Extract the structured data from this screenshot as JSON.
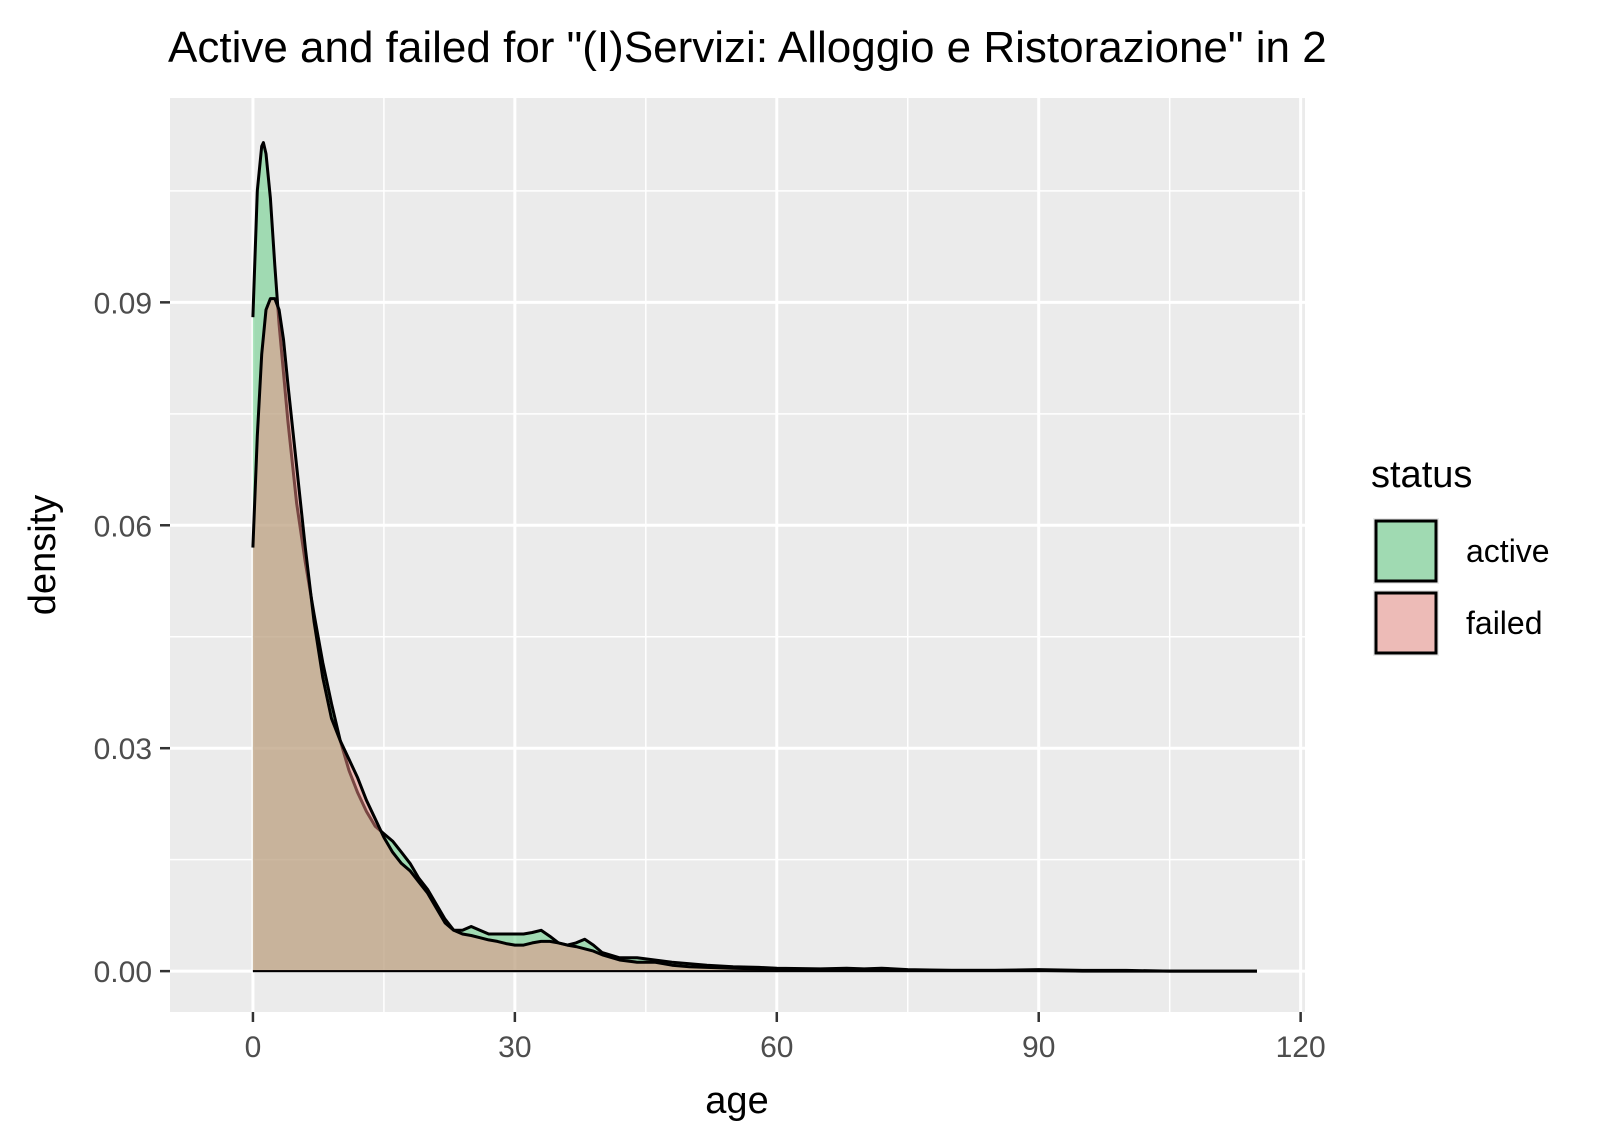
{
  "chart_data": {
    "type": "area",
    "title": "Active and failed for \"(I)Servizi: Alloggio e Ristorazione\" in 2",
    "xlabel": "age",
    "ylabel": "density",
    "xlim": [
      -9.5,
      120.5
    ],
    "ylim": [
      -0.0055,
      0.1175
    ],
    "x_ticks": [
      0,
      30,
      60,
      90,
      120
    ],
    "x_tick_labels": [
      "0",
      "30",
      "60",
      "90",
      "120"
    ],
    "y_ticks": [
      0.0,
      0.03,
      0.06,
      0.09
    ],
    "y_tick_labels": [
      "0.00",
      "0.03",
      "0.06",
      "0.09"
    ],
    "grid": true,
    "legend": {
      "title": "status",
      "placement": "right",
      "entries": [
        "active",
        "failed"
      ]
    },
    "colors": {
      "active": "#56c97a",
      "failed": "#ef8b83",
      "panel": "#ebebeb",
      "grid": "#ffffff",
      "outline": "#000000"
    },
    "series": [
      {
        "name": "active",
        "x": [
          0,
          0.5,
          1,
          1.2,
          1.5,
          2,
          2.5,
          3,
          4,
          5,
          6,
          7,
          8,
          9,
          10,
          11,
          12,
          13,
          14,
          15,
          16,
          17,
          18,
          19,
          20,
          21,
          22,
          23,
          24,
          25,
          26,
          27,
          28,
          29,
          30,
          31,
          32,
          33,
          34,
          35,
          36,
          37,
          38,
          39,
          40,
          42,
          44,
          46,
          48,
          50,
          52,
          55,
          58,
          60,
          65,
          68,
          70,
          72,
          75,
          80,
          85,
          90,
          95,
          100,
          105,
          110,
          115
        ],
        "y": [
          0.088,
          0.105,
          0.111,
          0.1115,
          0.11,
          0.104,
          0.095,
          0.087,
          0.074,
          0.063,
          0.055,
          0.048,
          0.0415,
          0.036,
          0.031,
          0.027,
          0.024,
          0.0215,
          0.0195,
          0.0185,
          0.0175,
          0.016,
          0.0145,
          0.0125,
          0.011,
          0.009,
          0.007,
          0.0055,
          0.0055,
          0.006,
          0.0055,
          0.005,
          0.005,
          0.005,
          0.005,
          0.005,
          0.0052,
          0.0055,
          0.0047,
          0.0038,
          0.0035,
          0.0038,
          0.0043,
          0.0035,
          0.0025,
          0.0018,
          0.0018,
          0.0015,
          0.0012,
          0.001,
          0.0008,
          0.0006,
          0.0005,
          0.0004,
          0.0003,
          0.0004,
          0.0003,
          0.0004,
          0.0002,
          0.0001,
          0.0001,
          0.0002,
          0.0001,
          0.0001,
          0.0,
          0.0,
          0.0
        ]
      },
      {
        "name": "failed",
        "x": [
          0,
          0.5,
          1,
          1.5,
          2,
          2.5,
          3,
          3.5,
          4,
          5,
          6,
          7,
          8,
          9,
          10,
          11,
          12,
          13,
          14,
          15,
          16,
          17,
          18,
          19,
          20,
          21,
          22,
          23,
          24,
          25,
          26,
          27,
          28,
          29,
          30,
          31,
          32,
          33,
          34,
          35,
          36,
          37,
          38,
          39,
          40,
          42,
          44,
          46,
          48,
          50,
          52,
          55,
          58,
          60,
          65,
          68,
          70,
          75,
          80,
          85,
          90,
          95,
          100,
          105,
          110,
          115
        ],
        "y": [
          0.057,
          0.072,
          0.083,
          0.089,
          0.0905,
          0.0905,
          0.089,
          0.085,
          0.079,
          0.068,
          0.057,
          0.047,
          0.0395,
          0.034,
          0.031,
          0.0285,
          0.026,
          0.023,
          0.0205,
          0.018,
          0.016,
          0.0145,
          0.0135,
          0.012,
          0.0105,
          0.0085,
          0.0065,
          0.0055,
          0.005,
          0.0048,
          0.0045,
          0.0042,
          0.004,
          0.0037,
          0.0035,
          0.0035,
          0.0038,
          0.004,
          0.004,
          0.0038,
          0.0035,
          0.0033,
          0.003,
          0.0027,
          0.0022,
          0.0015,
          0.0012,
          0.0012,
          0.0008,
          0.0006,
          0.0005,
          0.0004,
          0.0003,
          0.0003,
          0.0002,
          0.0002,
          0.0002,
          0.0001,
          0.0001,
          0.0001,
          0.0001,
          0.0,
          0.0,
          0.0,
          0.0,
          0.0
        ]
      }
    ]
  }
}
